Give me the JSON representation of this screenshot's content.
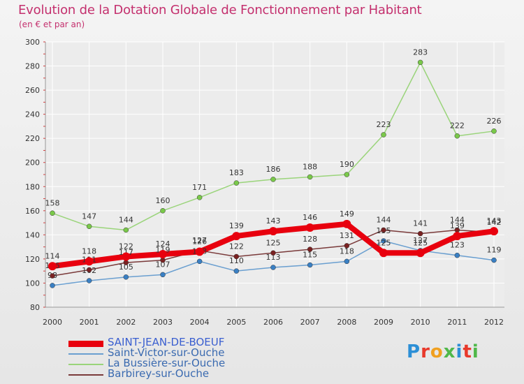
{
  "title": "Evolution de la Dotation Globale de Fonctionnement par Habitant",
  "subtitle": "(en € et par an)",
  "logo": {
    "text": "Proxiti",
    "colors": [
      "#2c8fd6",
      "#e8392b",
      "#f0a020",
      "#4fb84a",
      "#2c8fd6",
      "#e8392b",
      "#4fb84a"
    ]
  },
  "colors": {
    "title": "#c4306e",
    "axis_text": "#333333",
    "grid": "#ffffff",
    "background": "#efefef"
  },
  "chart_data": {
    "type": "line",
    "title": "Evolution de la Dotation Globale de Fonctionnement par Habitant",
    "subtitle": "(en € et par an)",
    "xlabel": "",
    "ylabel": "",
    "ylim": [
      80,
      300
    ],
    "yticks": [
      80,
      100,
      120,
      140,
      160,
      180,
      200,
      220,
      240,
      260,
      280,
      300
    ],
    "categories": [
      "2000",
      "2001",
      "2002",
      "2003",
      "2004",
      "2005",
      "2006",
      "2007",
      "2008",
      "2009",
      "2010",
      "2011",
      "2012"
    ],
    "grid": true,
    "legend_position": "bottom-left",
    "series": [
      {
        "name": "SAINT-JEAN-DE-BOEUF",
        "color": "#e8000e",
        "marker": "#e8000e",
        "width": "thick",
        "values": [
          114,
          118,
          122,
          124,
          126,
          139,
          143,
          146,
          149,
          125,
          125,
          139,
          143
        ]
      },
      {
        "name": "Saint-Victor-sur-Ouche",
        "color": "#6a9fd0",
        "marker": "#3a80c4",
        "width": "thin",
        "values": [
          98,
          102,
          105,
          107,
          118,
          110,
          113,
          115,
          118,
          135,
          127,
          123,
          119
        ]
      },
      {
        "name": "La Bussière-sur-Ouche",
        "color": "#9ad47a",
        "marker": "#7ac94a",
        "width": "thin",
        "values": [
          158,
          147,
          144,
          160,
          171,
          183,
          186,
          188,
          190,
          223,
          283,
          222,
          226
        ]
      },
      {
        "name": "Barbirey-sur-Ouche",
        "color": "#7a3a3a",
        "marker": "#7a2222",
        "width": "thin",
        "values": [
          106,
          111,
          117,
          119,
          127,
          122,
          125,
          128,
          131,
          144,
          141,
          144,
          142
        ]
      }
    ]
  }
}
